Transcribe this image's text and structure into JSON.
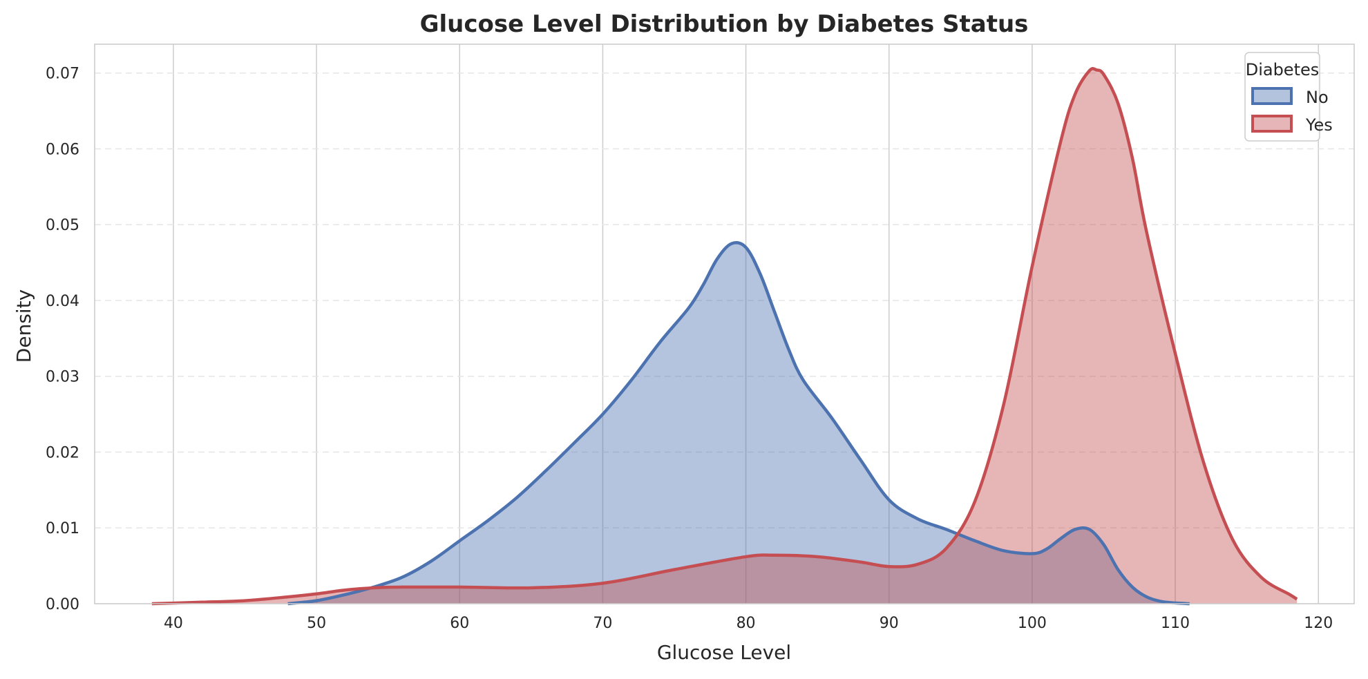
{
  "chart_data": {
    "type": "area",
    "title": "Glucose Level Distribution by Diabetes Status",
    "xlabel": "Glucose Level",
    "ylabel": "Density",
    "xlim": [
      34.5,
      122.5
    ],
    "ylim": [
      0,
      0.0738
    ],
    "xticks": [
      40,
      50,
      60,
      70,
      80,
      90,
      100,
      110,
      120
    ],
    "yticks": [
      0.0,
      0.01,
      0.02,
      0.03,
      0.04,
      0.05,
      0.06,
      0.07
    ],
    "ytick_labels": [
      "0.00",
      "0.01",
      "0.02",
      "0.03",
      "0.04",
      "0.05",
      "0.06",
      "0.07"
    ],
    "grid": {
      "x": "solid",
      "y": "dashed"
    },
    "legend": {
      "title": "Diabetes",
      "placement": "top-right"
    },
    "series": [
      {
        "name": "No",
        "color": "#4c72b0",
        "fill": "#b3c3dd",
        "x": [
          48,
          50,
          52,
          54,
          56,
          58,
          60,
          62,
          64,
          66,
          68,
          70,
          72,
          74,
          76,
          77,
          78,
          79,
          80,
          81,
          82,
          83,
          84,
          86,
          88,
          90,
          92,
          94,
          96,
          98,
          100,
          101,
          102,
          103,
          104,
          105,
          106,
          107,
          108,
          109,
          110,
          111
        ],
        "y": [
          0.0,
          0.0004,
          0.0012,
          0.0022,
          0.0035,
          0.0056,
          0.0083,
          0.011,
          0.014,
          0.0175,
          0.0212,
          0.025,
          0.0295,
          0.0345,
          0.039,
          0.042,
          0.0455,
          0.0475,
          0.047,
          0.0435,
          0.0385,
          0.0335,
          0.0295,
          0.0245,
          0.019,
          0.0137,
          0.0112,
          0.0098,
          0.0083,
          0.007,
          0.0066,
          0.0072,
          0.0086,
          0.0098,
          0.0098,
          0.0078,
          0.0045,
          0.0022,
          0.0009,
          0.0003,
          0.0001,
          0.0
        ]
      },
      {
        "name": "Yes",
        "color": "#c44e52",
        "fill": "#e5b5b8",
        "x": [
          38.5,
          42,
          45,
          48,
          50,
          52,
          54,
          56,
          60,
          65,
          70,
          75,
          80,
          82,
          85,
          88,
          90,
          92,
          94,
          96,
          98,
          100,
          102,
          103,
          104,
          104.5,
          105,
          106,
          107,
          108,
          110,
          112,
          114,
          116,
          118,
          118.5
        ],
        "y": [
          0.0,
          0.0002,
          0.0004,
          0.0009,
          0.0013,
          0.0018,
          0.0021,
          0.0022,
          0.0022,
          0.0021,
          0.0027,
          0.0045,
          0.0062,
          0.0064,
          0.0062,
          0.0055,
          0.0049,
          0.0052,
          0.0073,
          0.0135,
          0.0262,
          0.0445,
          0.061,
          0.0672,
          0.0703,
          0.0704,
          0.0698,
          0.066,
          0.0588,
          0.049,
          0.033,
          0.0185,
          0.0085,
          0.0035,
          0.0012,
          0.0006
        ]
      }
    ]
  }
}
